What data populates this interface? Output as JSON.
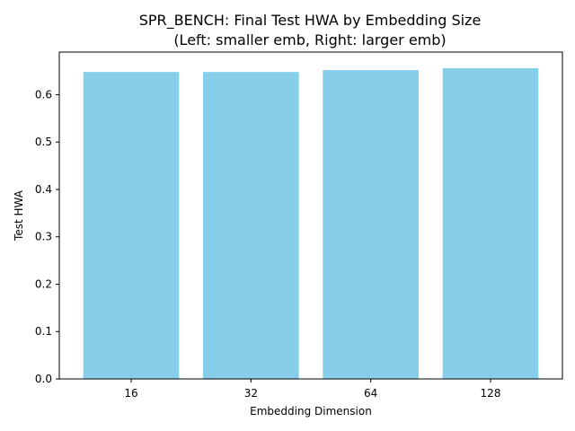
{
  "chart_data": {
    "type": "bar",
    "title": "SPR_BENCH: Final Test HWA by Embedding Size",
    "subtitle": "(Left: smaller emb, Right: larger emb)",
    "xlabel": "Embedding Dimension",
    "ylabel": "Test HWA",
    "categories": [
      "16",
      "32",
      "64",
      "128"
    ],
    "values": [
      0.648,
      0.648,
      0.652,
      0.656
    ],
    "ylim": [
      0,
      0.69
    ],
    "yticks": [
      "0.0",
      "0.1",
      "0.2",
      "0.3",
      "0.4",
      "0.5",
      "0.6"
    ],
    "grid": false,
    "bar_color": "#87ceeb"
  }
}
